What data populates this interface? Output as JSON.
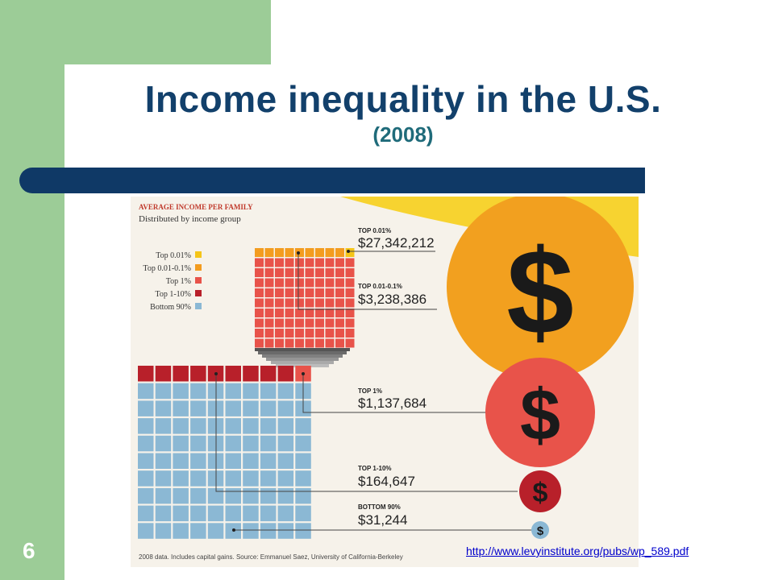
{
  "slide": {
    "title": "Income inequality in the U.S.",
    "subtitle": "(2008)",
    "number": "6",
    "source_link": "http://www.levyinstitute.org/pubs/wp_589.pdf"
  },
  "infographic": {
    "heading": "AVERAGE INCOME PER FAMILY",
    "subheading": "Distributed by income group",
    "legend": [
      {
        "label": "Top 0.01%",
        "color": "#f5c518"
      },
      {
        "label": "Top 0.01-0.1%",
        "color": "#f39c1f"
      },
      {
        "label": "Top 1%",
        "color": "#e8534a"
      },
      {
        "label": "Top 1-10%",
        "color": "#b8202a"
      },
      {
        "label": "Bottom 90%",
        "color": "#8bb8d4"
      }
    ],
    "groups": [
      {
        "label": "TOP 0.01%",
        "value": "$27,342,212"
      },
      {
        "label": "TOP 0.01-0.1%",
        "value": "$3,238,386"
      },
      {
        "label": "TOP 1%",
        "value": "$1,137,684"
      },
      {
        "label": "TOP 1-10%",
        "value": "$164,647"
      },
      {
        "label": "BOTTOM 90%",
        "value": "$31,244"
      }
    ],
    "dollar_symbol": "$",
    "footnote": "2008 data. Includes capital gains. Source: Emmanuel Saez, University of California-Berkeley"
  }
}
